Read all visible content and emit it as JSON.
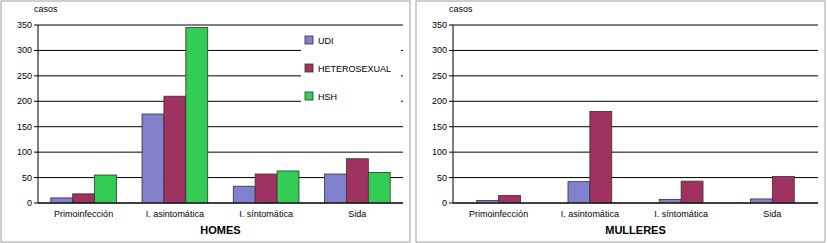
{
  "chart_data": [
    {
      "type": "bar",
      "ylabel": "casos",
      "xlabel": "HOMES",
      "categories": [
        "Primoinfección",
        "I. asintomática",
        "I. síntomática",
        "Sida"
      ],
      "series": [
        {
          "name": "UDI",
          "color": "#8080cc",
          "values": [
            10,
            175,
            33,
            57
          ]
        },
        {
          "name": "HETEROSEXUAL",
          "color": "#a03262",
          "values": [
            18,
            210,
            57,
            87
          ]
        },
        {
          "name": "HSH",
          "color": "#33cc55",
          "values": [
            55,
            345,
            63,
            60
          ]
        }
      ],
      "ylim": [
        0,
        350
      ],
      "yticks": [
        0,
        50,
        100,
        150,
        200,
        250,
        300,
        350
      ],
      "grid": true,
      "legend": "upper right"
    },
    {
      "type": "bar",
      "ylabel": "casos",
      "xlabel": "MULLERES",
      "categories": [
        "Primoinfección",
        "I. asintomática",
        "I. síntomática",
        "Sida"
      ],
      "series": [
        {
          "color": "#8080cc",
          "values": [
            5,
            42,
            7,
            8
          ]
        },
        {
          "color": "#a03262",
          "values": [
            15,
            180,
            43,
            52
          ]
        }
      ],
      "ylim": [
        0,
        350
      ],
      "yticks": [
        0,
        50,
        100,
        150,
        200,
        250,
        300,
        350
      ],
      "grid": true
    }
  ]
}
